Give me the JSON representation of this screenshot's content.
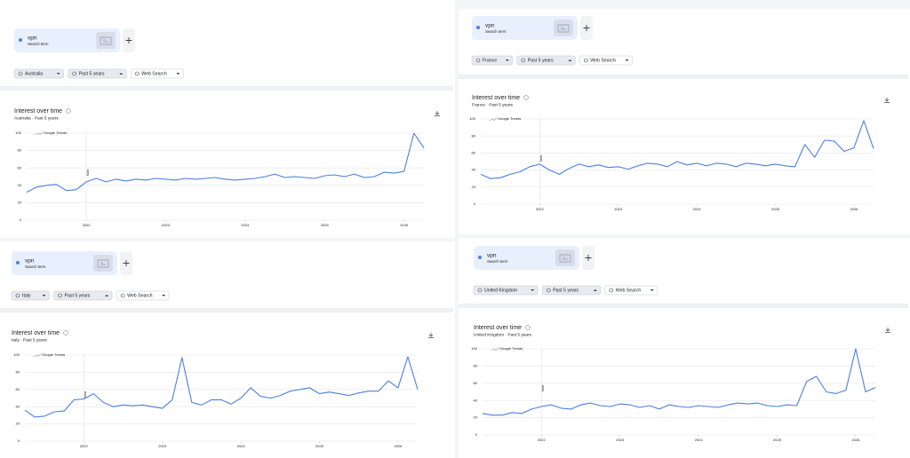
{
  "panels": [
    {
      "search_term": "vpn",
      "term_type": "Search term",
      "filters": [
        "Australia",
        "Past 5 years",
        "Web Search"
      ]
    },
    {
      "search_term": "vpn",
      "term_type": "Search term",
      "filters": [
        "France",
        "Past 5 years",
        "Web Search"
      ]
    },
    {
      "search_term": "vpn",
      "term_type": "Search term",
      "filters": [
        "Italy",
        "Past 5 years",
        "Web Search"
      ]
    },
    {
      "search_term": "vpn",
      "term_type": "Search term",
      "filters": [
        "United Kingdom",
        "Past 5 years",
        "Web Search"
      ]
    }
  ],
  "chart_data": [
    {
      "type": "line",
      "title": "Interest over time",
      "subtitle": "Australia · Past 5 years",
      "watermark": "Google Trends",
      "annotation": "Note",
      "x": [
        2021.25,
        2021.375,
        2021.5,
        2021.625,
        2021.75,
        2021.875,
        2022,
        2022.125,
        2022.25,
        2022.375,
        2022.5,
        2022.625,
        2022.75,
        2022.875,
        2023,
        2023.125,
        2023.25,
        2023.375,
        2023.5,
        2023.625,
        2023.75,
        2023.875,
        2024,
        2024.125,
        2024.25,
        2024.375,
        2024.5,
        2024.625,
        2024.75,
        2024.875,
        2025,
        2025.125,
        2025.25,
        2025.375,
        2025.5,
        2025.625,
        2025.75,
        2025.875,
        2026,
        2026.125,
        2026.25
      ],
      "values": [
        32,
        38,
        40,
        41,
        34,
        35,
        44,
        48,
        44,
        47,
        45,
        47,
        46,
        48,
        47,
        46,
        48,
        47,
        48,
        49,
        47,
        46,
        47,
        48,
        50,
        53,
        49,
        50,
        49,
        48,
        51,
        52,
        50,
        53,
        49,
        50,
        55,
        54,
        56,
        100,
        83
      ],
      "color": "#4a80e0",
      "xlim": [
        2021.25,
        2026.25
      ],
      "xticks": [
        2022,
        2023,
        2024,
        2025,
        2026
      ],
      "ylim": [
        0,
        100
      ],
      "yticks": [
        0,
        20,
        40,
        60,
        80,
        100
      ],
      "grid": true
    },
    {
      "type": "line",
      "title": "Interest over time",
      "subtitle": "France · Past 5 years",
      "watermark": "Google Trends",
      "annotation": "Note",
      "x": [
        2021.25,
        2021.375,
        2021.5,
        2021.625,
        2021.75,
        2021.875,
        2022,
        2022.125,
        2022.25,
        2022.375,
        2022.5,
        2022.625,
        2022.75,
        2022.875,
        2023,
        2023.125,
        2023.25,
        2023.375,
        2023.5,
        2023.625,
        2023.75,
        2023.875,
        2024,
        2024.125,
        2024.25,
        2024.375,
        2024.5,
        2024.625,
        2024.75,
        2024.875,
        2025,
        2025.125,
        2025.25,
        2025.375,
        2025.5,
        2025.625,
        2025.75,
        2025.875,
        2026,
        2026.125,
        2026.25
      ],
      "values": [
        35,
        30,
        31,
        35,
        38,
        44,
        47,
        40,
        35,
        42,
        47,
        44,
        46,
        43,
        44,
        41,
        45,
        48,
        47,
        44,
        50,
        46,
        48,
        45,
        48,
        47,
        44,
        48,
        47,
        45,
        47,
        45,
        44,
        70,
        55,
        75,
        74,
        62,
        66,
        98,
        65
      ],
      "color": "#4a80e0",
      "xlim": [
        2021.25,
        2026.25
      ],
      "xticks": [
        2022,
        2023,
        2024,
        2025,
        2026
      ],
      "ylim": [
        0,
        100
      ],
      "yticks": [
        0,
        20,
        40,
        60,
        80,
        100
      ],
      "grid": true
    },
    {
      "type": "line",
      "title": "Interest over time",
      "subtitle": "Italy · Past 5 years",
      "watermark": "Google Trends",
      "annotation": "Note",
      "x": [
        2021.25,
        2021.375,
        2021.5,
        2021.625,
        2021.75,
        2021.875,
        2022,
        2022.125,
        2022.25,
        2022.375,
        2022.5,
        2022.625,
        2022.75,
        2022.875,
        2023,
        2023.125,
        2023.25,
        2023.375,
        2023.5,
        2023.625,
        2023.75,
        2023.875,
        2024,
        2024.125,
        2024.25,
        2024.375,
        2024.5,
        2024.625,
        2024.75,
        2024.875,
        2025,
        2025.125,
        2025.25,
        2025.375,
        2025.5,
        2025.625,
        2025.75,
        2025.875,
        2026,
        2026.125,
        2026.25
      ],
      "values": [
        36,
        28,
        29,
        34,
        35,
        48,
        49,
        55,
        45,
        40,
        42,
        41,
        42,
        40,
        38,
        48,
        97,
        45,
        42,
        48,
        48,
        43,
        50,
        62,
        52,
        50,
        53,
        58,
        60,
        62,
        55,
        57,
        55,
        53,
        56,
        58,
        58,
        70,
        62,
        98,
        60
      ],
      "color": "#4a80e0",
      "xlim": [
        2021.25,
        2026.25
      ],
      "xticks": [
        2022,
        2023,
        2024,
        2025,
        2026
      ],
      "ylim": [
        0,
        100
      ],
      "yticks": [
        0,
        20,
        40,
        60,
        80,
        100
      ],
      "grid": true
    },
    {
      "type": "line",
      "title": "Interest over time",
      "subtitle": "United Kingdom · Past 5 years",
      "watermark": "Google Trends",
      "annotation": "Note",
      "x": [
        2021.25,
        2021.375,
        2021.5,
        2021.625,
        2021.75,
        2021.875,
        2022,
        2022.125,
        2022.25,
        2022.375,
        2022.5,
        2022.625,
        2022.75,
        2022.875,
        2023,
        2023.125,
        2023.25,
        2023.375,
        2023.5,
        2023.625,
        2023.75,
        2023.875,
        2024,
        2024.125,
        2024.25,
        2024.375,
        2024.5,
        2024.625,
        2024.75,
        2024.875,
        2025,
        2025.125,
        2025.25,
        2025.375,
        2025.5,
        2025.625,
        2025.75,
        2025.875,
        2026,
        2026.125,
        2026.25
      ],
      "values": [
        25,
        23,
        23,
        26,
        25,
        30,
        33,
        35,
        31,
        30,
        35,
        37,
        34,
        33,
        36,
        35,
        32,
        34,
        30,
        35,
        33,
        32,
        34,
        33,
        32,
        35,
        37,
        36,
        37,
        34,
        33,
        35,
        34,
        62,
        68,
        50,
        48,
        52,
        100,
        50,
        55
      ],
      "color": "#4a80e0",
      "xlim": [
        2021.25,
        2026.25
      ],
      "xticks": [
        2022,
        2023,
        2024,
        2025,
        2026
      ],
      "ylim": [
        0,
        100
      ],
      "yticks": [
        0,
        20,
        40,
        60,
        80,
        100
      ],
      "grid": true
    }
  ]
}
